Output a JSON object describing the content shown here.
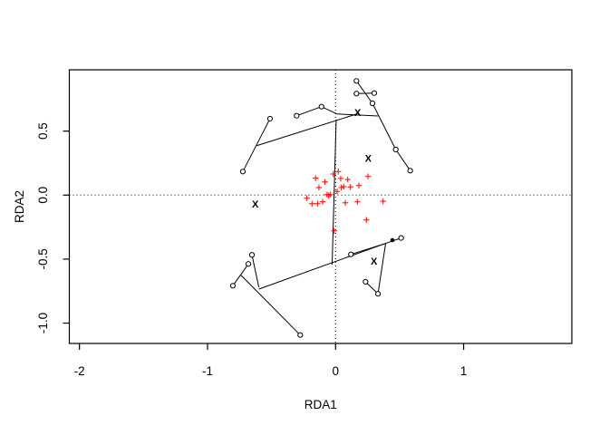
{
  "chart_data": {
    "type": "scatter",
    "title": "",
    "xlabel": "RDA1",
    "ylabel": "RDA2",
    "xlim": [
      -2.079,
      1.845
    ],
    "ylim": [
      -1.159,
      0.979
    ],
    "grid": false,
    "reference_lines": {
      "vertical_x": 0,
      "horizontal_y": 0,
      "style": "dotted",
      "color": "#000000"
    },
    "x_ticks": {
      "values": [
        -2,
        -1,
        0,
        1
      ],
      "labels": [
        "-2",
        "-1",
        "0",
        "1"
      ]
    },
    "y_ticks": {
      "values": [
        -1.0,
        -0.5,
        0.0,
        0.5
      ],
      "labels": [
        "-1.0",
        "-0.5",
        "0.0",
        "0.5"
      ]
    },
    "colors": {
      "species": "#ff1510",
      "centroid": "#2222f0",
      "sites": "#000000",
      "lines": "#000000"
    },
    "series": [
      {
        "name": "species-scores-red-plus",
        "marker": "plus",
        "points": [
          [
            -0.156,
            0.132
          ],
          [
            -0.083,
            0.103
          ],
          [
            -0.018,
            0.165
          ],
          [
            0.021,
            0.184
          ],
          [
            0.04,
            0.13
          ],
          [
            0.095,
            0.122
          ],
          [
            0.253,
            0.146
          ],
          [
            -0.13,
            0.059
          ],
          [
            -0.066,
            0.004
          ],
          [
            -0.054,
            -0.004
          ],
          [
            -0.042,
            0.004
          ],
          [
            0.012,
            0.028
          ],
          [
            0.045,
            0.059
          ],
          [
            0.064,
            0.066
          ],
          [
            0.116,
            0.064
          ],
          [
            0.182,
            0.075
          ],
          [
            -0.184,
            -0.067
          ],
          [
            -0.141,
            -0.067
          ],
          [
            -0.101,
            -0.052
          ],
          [
            0.076,
            -0.06
          ],
          [
            0.17,
            -0.052
          ],
          [
            0.371,
            -0.048
          ],
          [
            0.241,
            -0.194
          ],
          [
            -0.011,
            -0.279
          ],
          [
            -0.224,
            -0.024
          ]
        ]
      },
      {
        "name": "site-scores-open-circles",
        "marker": "open-circle",
        "points": [
          [
            -0.724,
            0.184
          ],
          [
            -0.512,
            0.597
          ],
          [
            -0.304,
            0.62
          ],
          [
            -0.11,
            0.691
          ],
          [
            0.163,
            0.892
          ],
          [
            0.163,
            0.793
          ],
          [
            0.302,
            0.797
          ],
          [
            0.288,
            0.717
          ],
          [
            0.47,
            0.356
          ],
          [
            0.583,
            0.191
          ],
          [
            -0.653,
            -0.467
          ],
          [
            -0.681,
            -0.538
          ],
          [
            -0.802,
            -0.708
          ],
          [
            -0.276,
            -1.093
          ],
          [
            0.12,
            -0.463
          ],
          [
            0.512,
            -0.335
          ],
          [
            0.234,
            -0.677
          ],
          [
            0.331,
            -0.771
          ]
        ]
      },
      {
        "name": "centroids-blue-x",
        "marker": "X",
        "points": [
          [
            -0.627,
            -0.071
          ],
          [
            0.173,
            0.644
          ],
          [
            0.255,
            0.287
          ],
          [
            0.3,
            -0.517
          ]
        ]
      },
      {
        "name": "filled-point",
        "marker": "filled-circle",
        "points": [
          [
            0.444,
            -0.352
          ]
        ]
      }
    ],
    "segments": [
      [
        -0.724,
        0.184,
        -0.512,
        0.597
      ],
      [
        -0.616,
        0.386,
        0.173,
        0.636
      ],
      [
        -0.304,
        0.62,
        -0.11,
        0.691
      ],
      [
        -0.11,
        0.691,
        0.01,
        0.634
      ],
      [
        0.01,
        0.634,
        0.331,
        0.618
      ],
      [
        0.163,
        0.892,
        0.288,
        0.717
      ],
      [
        0.163,
        0.793,
        0.302,
        0.797
      ],
      [
        0.288,
        0.717,
        0.47,
        0.356
      ],
      [
        0.47,
        0.356,
        0.583,
        0.191
      ],
      [
        0.005,
        0.59,
        -0.027,
        -0.543
      ],
      [
        -0.653,
        -0.467,
        -0.599,
        -0.72
      ],
      [
        -0.681,
        -0.538,
        -0.802,
        -0.708
      ],
      [
        -0.738,
        -0.626,
        -0.276,
        -1.093
      ],
      [
        -0.599,
        -0.734,
        0.391,
        -0.377
      ],
      [
        0.391,
        -0.377,
        0.512,
        -0.335
      ],
      [
        0.12,
        -0.463,
        0.391,
        -0.377
      ],
      [
        0.391,
        -0.377,
        0.331,
        -0.771
      ],
      [
        0.234,
        -0.677,
        0.331,
        -0.771
      ]
    ]
  }
}
